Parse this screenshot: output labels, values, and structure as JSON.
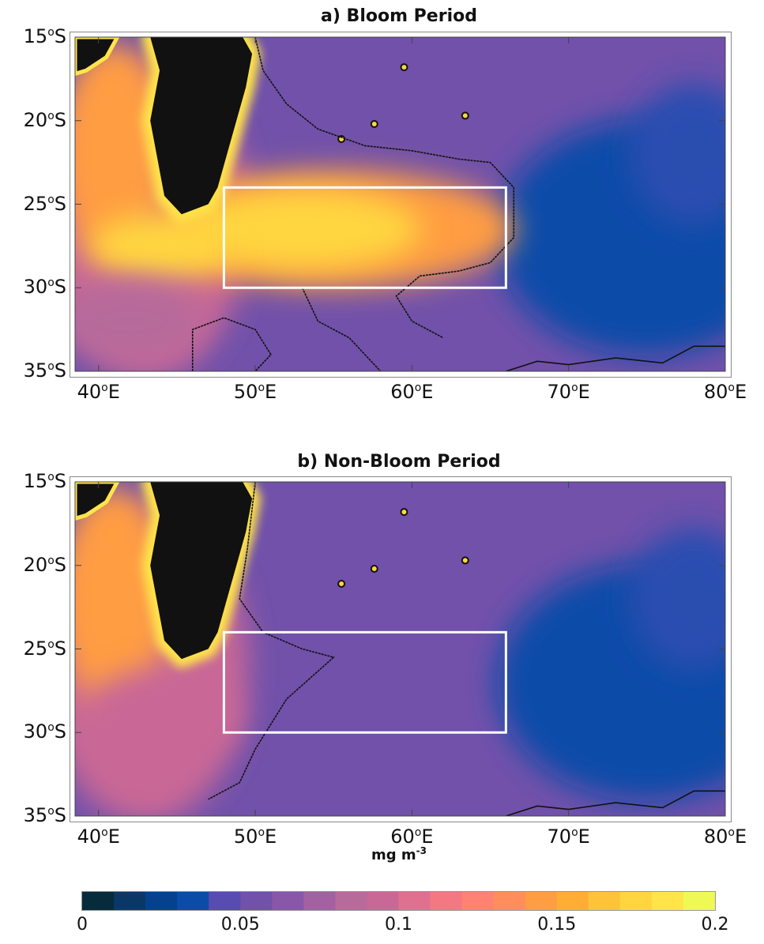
{
  "chart_data": {
    "type": "heatmap",
    "panels": [
      {
        "title": "a) Bloom Period"
      },
      {
        "title": "b) Non-Bloom Period"
      }
    ],
    "variable_units": "mg m-3",
    "xlim": [
      38.5,
      80
    ],
    "ylim": [
      -35,
      -15
    ],
    "x_ticks": [
      {
        "value": 40,
        "label": "40",
        "suffix": "E"
      },
      {
        "value": 50,
        "label": "50",
        "suffix": "E"
      },
      {
        "value": 60,
        "label": "60",
        "suffix": "E"
      },
      {
        "value": 70,
        "label": "70",
        "suffix": "E"
      },
      {
        "value": 80,
        "label": "80",
        "suffix": "E"
      }
    ],
    "y_ticks": [
      {
        "value": -15,
        "label": "15",
        "suffix": "S"
      },
      {
        "value": -20,
        "label": "20",
        "suffix": "S"
      },
      {
        "value": -25,
        "label": "25",
        "suffix": "S"
      },
      {
        "value": -30,
        "label": "30",
        "suffix": "S"
      },
      {
        "value": -35,
        "label": "35",
        "suffix": "S"
      }
    ],
    "study_box": {
      "lon": [
        48,
        66
      ],
      "lat": [
        -30,
        -24
      ]
    },
    "colorbar": {
      "label": "mg m",
      "label_exp": "-3",
      "range": [
        0,
        0.2
      ],
      "ticks": [
        {
          "value": 0,
          "label": "0"
        },
        {
          "value": 0.05,
          "label": "0.05"
        },
        {
          "value": 0.1,
          "label": "0.1"
        },
        {
          "value": 0.15,
          "label": "0.15"
        },
        {
          "value": 0.2,
          "label": "0.2"
        }
      ],
      "colors": [
        "#062b3b",
        "#0b3767",
        "#06418f",
        "#0c4ca9",
        "#584bb1",
        "#7151aa",
        "#8857a8",
        "#a261a1",
        "#b66b9b",
        "#c96896",
        "#e07090",
        "#f47882",
        "#ff8272",
        "#ff8e5c",
        "#ff9d42",
        "#ffad34",
        "#ffc33a",
        "#ffd63f",
        "#ffe44a",
        "#eef955"
      ]
    }
  }
}
